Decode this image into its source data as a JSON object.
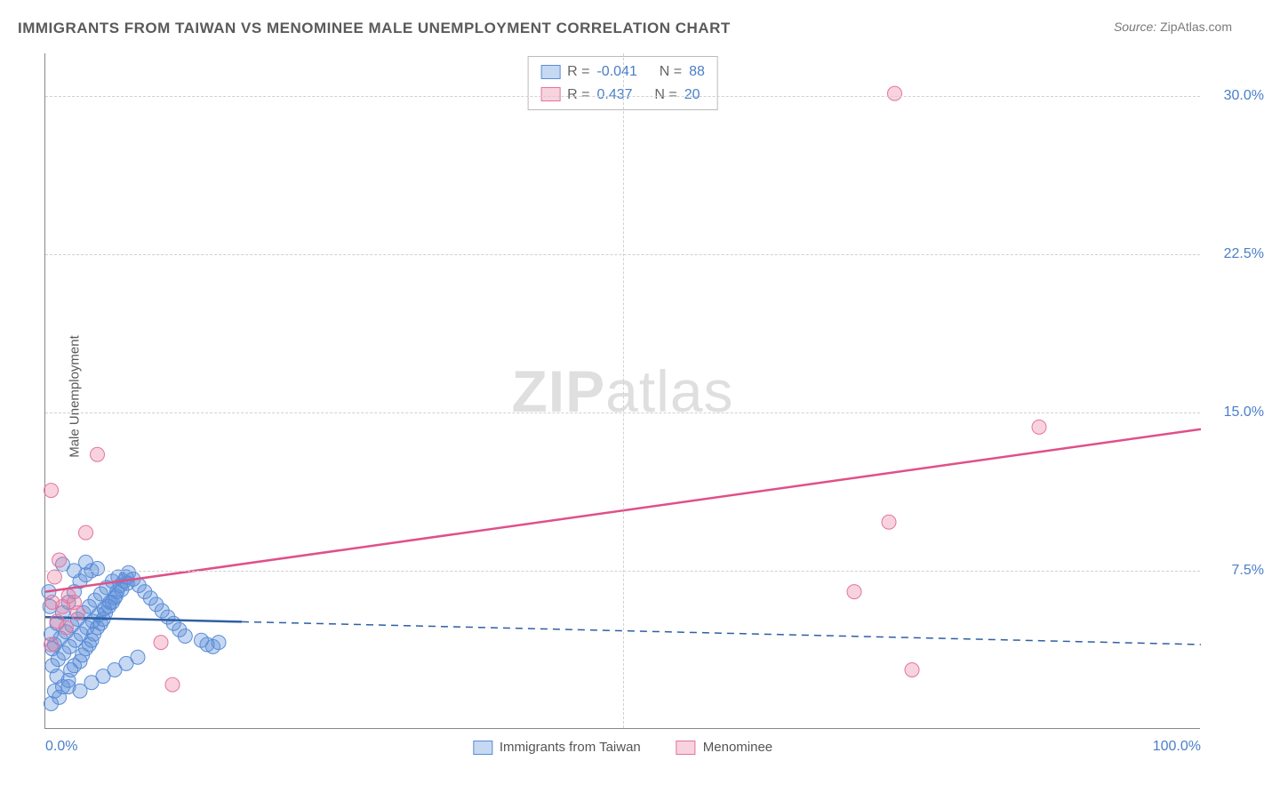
{
  "title": "IMMIGRANTS FROM TAIWAN VS MENOMINEE MALE UNEMPLOYMENT CORRELATION CHART",
  "source_label": "Source:",
  "source_value": "ZipAtlas.com",
  "ylabel": "Male Unemployment",
  "watermark_zip": "ZIP",
  "watermark_atlas": "atlas",
  "chart": {
    "type": "scatter",
    "xlim": [
      0,
      100
    ],
    "ylim": [
      0,
      32
    ],
    "xticks": [
      {
        "v": 0,
        "l": "0.0%"
      },
      {
        "v": 100,
        "l": "100.0%"
      }
    ],
    "yticks": [
      {
        "v": 7.5,
        "l": "7.5%"
      },
      {
        "v": 15.0,
        "l": "15.0%"
      },
      {
        "v": 22.5,
        "l": "22.5%"
      },
      {
        "v": 30.0,
        "l": "30.0%"
      }
    ],
    "x_gridlines": [
      50
    ],
    "background_color": "#ffffff",
    "grid_color": "#d0d0d0",
    "marker_radius": 8,
    "marker_opacity": 0.5,
    "series": [
      {
        "name": "Immigrants from Taiwan",
        "color_fill": "rgba(93,143,217,0.35)",
        "color_stroke": "#5b8dd6",
        "r": "-0.041",
        "n": "88",
        "trend": {
          "y_at_x0": 5.3,
          "y_at_x100": 4.0,
          "solid_until_x": 17,
          "color": "#2e5fa3",
          "width": 2.5
        },
        "points": [
          {
            "x": 0.5,
            "y": 1.2
          },
          {
            "x": 0.8,
            "y": 1.8
          },
          {
            "x": 1.2,
            "y": 1.5
          },
          {
            "x": 1.5,
            "y": 2.0
          },
          {
            "x": 2.0,
            "y": 2.3
          },
          {
            "x": 2.2,
            "y": 2.8
          },
          {
            "x": 2.5,
            "y": 3.0
          },
          {
            "x": 3.0,
            "y": 3.2
          },
          {
            "x": 3.2,
            "y": 3.5
          },
          {
            "x": 3.5,
            "y": 3.8
          },
          {
            "x": 3.8,
            "y": 4.0
          },
          {
            "x": 4.0,
            "y": 4.2
          },
          {
            "x": 4.2,
            "y": 4.5
          },
          {
            "x": 4.5,
            "y": 4.8
          },
          {
            "x": 4.8,
            "y": 5.0
          },
          {
            "x": 5.0,
            "y": 5.2
          },
          {
            "x": 5.2,
            "y": 5.5
          },
          {
            "x": 5.5,
            "y": 5.8
          },
          {
            "x": 5.8,
            "y": 6.0
          },
          {
            "x": 6.0,
            "y": 6.2
          },
          {
            "x": 6.2,
            "y": 6.5
          },
          {
            "x": 6.5,
            "y": 6.8
          },
          {
            "x": 6.8,
            "y": 7.0
          },
          {
            "x": 7.0,
            "y": 7.2
          },
          {
            "x": 7.2,
            "y": 7.4
          },
          {
            "x": 1.0,
            "y": 5.0
          },
          {
            "x": 1.5,
            "y": 5.5
          },
          {
            "x": 2.0,
            "y": 6.0
          },
          {
            "x": 2.5,
            "y": 6.5
          },
          {
            "x": 3.0,
            "y": 7.0
          },
          {
            "x": 3.5,
            "y": 7.3
          },
          {
            "x": 4.0,
            "y": 7.5
          },
          {
            "x": 0.8,
            "y": 4.0
          },
          {
            "x": 1.3,
            "y": 4.3
          },
          {
            "x": 1.8,
            "y": 4.6
          },
          {
            "x": 2.3,
            "y": 4.9
          },
          {
            "x": 2.8,
            "y": 5.2
          },
          {
            "x": 3.3,
            "y": 5.5
          },
          {
            "x": 3.8,
            "y": 5.8
          },
          {
            "x": 4.3,
            "y": 6.1
          },
          {
            "x": 4.8,
            "y": 6.4
          },
          {
            "x": 5.3,
            "y": 6.7
          },
          {
            "x": 5.8,
            "y": 7.0
          },
          {
            "x": 6.3,
            "y": 7.2
          },
          {
            "x": 0.6,
            "y": 3.0
          },
          {
            "x": 1.1,
            "y": 3.3
          },
          {
            "x": 1.6,
            "y": 3.6
          },
          {
            "x": 2.1,
            "y": 3.9
          },
          {
            "x": 2.6,
            "y": 4.2
          },
          {
            "x": 3.1,
            "y": 4.5
          },
          {
            "x": 3.6,
            "y": 4.8
          },
          {
            "x": 4.1,
            "y": 5.1
          },
          {
            "x": 4.6,
            "y": 5.4
          },
          {
            "x": 5.1,
            "y": 5.7
          },
          {
            "x": 5.6,
            "y": 6.0
          },
          {
            "x": 6.1,
            "y": 6.3
          },
          {
            "x": 6.6,
            "y": 6.6
          },
          {
            "x": 7.1,
            "y": 6.9
          },
          {
            "x": 7.6,
            "y": 7.1
          },
          {
            "x": 8.1,
            "y": 6.8
          },
          {
            "x": 8.6,
            "y": 6.5
          },
          {
            "x": 9.1,
            "y": 6.2
          },
          {
            "x": 9.6,
            "y": 5.9
          },
          {
            "x": 10.1,
            "y": 5.6
          },
          {
            "x": 10.6,
            "y": 5.3
          },
          {
            "x": 11.1,
            "y": 5.0
          },
          {
            "x": 11.6,
            "y": 4.7
          },
          {
            "x": 12.1,
            "y": 4.4
          },
          {
            "x": 1.0,
            "y": 2.5
          },
          {
            "x": 2.0,
            "y": 2.0
          },
          {
            "x": 3.0,
            "y": 1.8
          },
          {
            "x": 4.0,
            "y": 2.2
          },
          {
            "x": 5.0,
            "y": 2.5
          },
          {
            "x": 6.0,
            "y": 2.8
          },
          {
            "x": 7.0,
            "y": 3.1
          },
          {
            "x": 8.0,
            "y": 3.4
          },
          {
            "x": 1.5,
            "y": 7.8
          },
          {
            "x": 2.5,
            "y": 7.5
          },
          {
            "x": 3.5,
            "y": 7.9
          },
          {
            "x": 4.5,
            "y": 7.6
          },
          {
            "x": 0.3,
            "y": 6.5
          },
          {
            "x": 0.4,
            "y": 5.8
          },
          {
            "x": 0.5,
            "y": 4.5
          },
          {
            "x": 0.6,
            "y": 3.8
          },
          {
            "x": 13.5,
            "y": 4.2
          },
          {
            "x": 14.0,
            "y": 4.0
          },
          {
            "x": 14.5,
            "y": 3.9
          },
          {
            "x": 15.0,
            "y": 4.1
          }
        ]
      },
      {
        "name": "Menominee",
        "color_fill": "rgba(235,130,160,0.35)",
        "color_stroke": "#e573a0",
        "r": "0.437",
        "n": "20",
        "trend": {
          "y_at_x0": 6.5,
          "y_at_x100": 14.2,
          "solid_until_x": 100,
          "color": "#e05088",
          "width": 2.5
        },
        "points": [
          {
            "x": 0.5,
            "y": 4.0
          },
          {
            "x": 1.0,
            "y": 5.1
          },
          {
            "x": 1.5,
            "y": 5.8
          },
          {
            "x": 2.0,
            "y": 6.3
          },
          {
            "x": 0.8,
            "y": 7.2
          },
          {
            "x": 1.2,
            "y": 8.0
          },
          {
            "x": 2.5,
            "y": 6.0
          },
          {
            "x": 0.5,
            "y": 11.3
          },
          {
            "x": 3.5,
            "y": 9.3
          },
          {
            "x": 4.5,
            "y": 13.0
          },
          {
            "x": 10.0,
            "y": 4.1
          },
          {
            "x": 11.0,
            "y": 2.1
          },
          {
            "x": 0.6,
            "y": 6.0
          },
          {
            "x": 2.8,
            "y": 5.5
          },
          {
            "x": 1.8,
            "y": 4.8
          },
          {
            "x": 70.0,
            "y": 6.5
          },
          {
            "x": 73.0,
            "y": 9.8
          },
          {
            "x": 75.0,
            "y": 2.8
          },
          {
            "x": 73.5,
            "y": 30.1
          },
          {
            "x": 86.0,
            "y": 14.3
          }
        ]
      }
    ]
  },
  "legend": {
    "r_label": "R =",
    "n_label": "N ="
  }
}
